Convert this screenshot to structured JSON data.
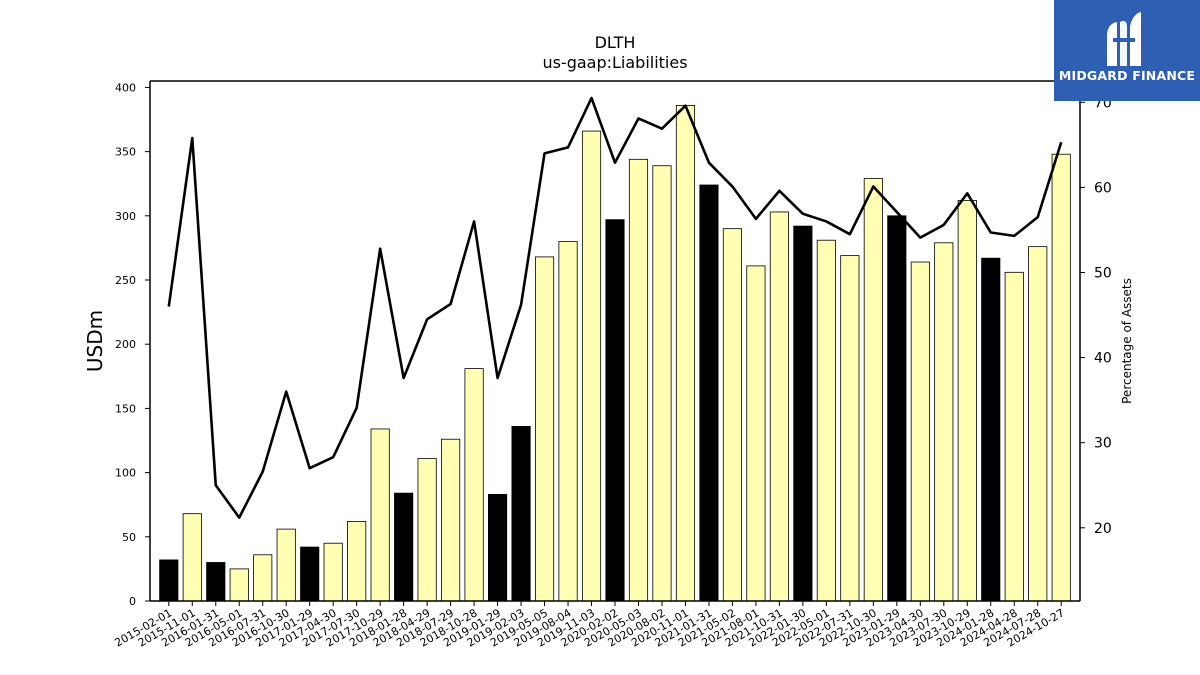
{
  "brand": {
    "name": "MIDGARD FINANCE",
    "background": "#2f5fb3"
  },
  "chart_data": {
    "type": "bar",
    "title": "DLTH",
    "subtitle": "us-gaap:Liabilities",
    "ylabel": "USDm",
    "y2label": "Percentage of Assets",
    "ylim": [
      0,
      405
    ],
    "y2lim": [
      11.4,
      72.5
    ],
    "yticks": [
      0,
      50,
      100,
      150,
      200,
      250,
      300,
      350,
      400
    ],
    "y2ticks": [
      20,
      30,
      40,
      50,
      60,
      70
    ],
    "grid": false,
    "categories": [
      "2015-02-01",
      "2015-11-01",
      "2016-01-31",
      "2016-05-01",
      "2016-07-31",
      "2016-10-30",
      "2017-01-29",
      "2017-04-30",
      "2017-07-30",
      "2017-10-29",
      "2018-01-28",
      "2018-04-29",
      "2018-07-29",
      "2018-10-28",
      "2019-01-29",
      "2019-02-03",
      "2019-05-05",
      "2019-08-04",
      "2019-11-03",
      "2020-02-02",
      "2020-05-03",
      "2020-08-02",
      "2020-11-01",
      "2021-01-31",
      "2021-05-02",
      "2021-08-01",
      "2021-10-31",
      "2022-01-30",
      "2022-05-01",
      "2022-07-31",
      "2022-10-30",
      "2023-01-29",
      "2023-04-30",
      "2023-07-30",
      "2023-10-29",
      "2024-01-28",
      "2024-04-28",
      "2024-07-28",
      "2024-10-27"
    ],
    "series": [
      {
        "type": "bar",
        "values": [
          32,
          68,
          30,
          25,
          36,
          56,
          42,
          45,
          62,
          134,
          84,
          111,
          126,
          181,
          83,
          136,
          268,
          280,
          366,
          297,
          344,
          339,
          386,
          324,
          290,
          261,
          303,
          292,
          281,
          269,
          329,
          300,
          264,
          279,
          312,
          267,
          256,
          276,
          348
        ],
        "colors": [
          "#000000",
          "#ffffb3",
          "#000000",
          "#ffffb3",
          "#ffffb3",
          "#ffffb3",
          "#000000",
          "#ffffb3",
          "#ffffb3",
          "#ffffb3",
          "#000000",
          "#ffffb3",
          "#ffffb3",
          "#ffffb3",
          "#000000",
          "#000000",
          "#ffffb3",
          "#ffffb3",
          "#ffffb3",
          "#000000",
          "#ffffb3",
          "#ffffb3",
          "#ffffb3",
          "#000000",
          "#ffffb3",
          "#ffffb3",
          "#ffffb3",
          "#000000",
          "#ffffb3",
          "#ffffb3",
          "#ffffb3",
          "#000000",
          "#ffffb3",
          "#ffffb3",
          "#ffffb3",
          "#000000",
          "#ffffb3",
          "#ffffb3",
          "#ffffb3"
        ]
      },
      {
        "type": "line",
        "axis": "right",
        "color": "#000000",
        "values": [
          46.0,
          65.8,
          25.0,
          21.2,
          26.6,
          36.0,
          27.0,
          28.3,
          34.1,
          52.8,
          37.6,
          44.5,
          46.3,
          56.0,
          37.6,
          46.2,
          64.0,
          64.7,
          70.5,
          62.9,
          68.1,
          66.9,
          69.6,
          62.9,
          60.1,
          56.3,
          59.6,
          56.9,
          56.0,
          54.5,
          60.1,
          57.1,
          54.1,
          55.6,
          59.3,
          54.7,
          54.3,
          56.5,
          65.3
        ]
      }
    ]
  }
}
